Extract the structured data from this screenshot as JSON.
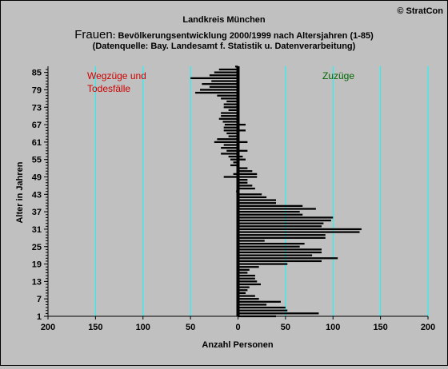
{
  "copyright": "© StratCon",
  "title": {
    "line1": "Landkreis München",
    "prefix": "Frauen",
    "line2": ": Bevölkerungsentwicklung 2000/1999  nach Altersjahren (1-85)",
    "line3": "(Datenquelle: Bay. Landesamt f. Statistik u. Datenverarbeitung)"
  },
  "colors": {
    "background": "#c0c0c0",
    "plot": "#c0c0c0",
    "bars": "#000000",
    "grid": "#00ffff",
    "left_label": "#cc0000",
    "right_label": "#006600"
  },
  "chart_data": {
    "type": "bar",
    "orientation": "horizontal",
    "xlabel": "Anzahl Personen",
    "ylabel": "Alter in Jahren",
    "xlim": [
      -200,
      200
    ],
    "x_ticks": [
      -200,
      -150,
      -100,
      -50,
      0,
      50,
      100,
      150,
      200
    ],
    "x_tick_labels": [
      "200",
      "150",
      "100",
      "50",
      "0",
      "50",
      "100",
      "150",
      "200"
    ],
    "y_ticks": [
      1,
      7,
      13,
      19,
      25,
      31,
      37,
      43,
      49,
      55,
      61,
      67,
      73,
      79,
      85
    ],
    "grid_vertical": true,
    "left_label_lines": [
      "Wegzüge und",
      "Todesfälle"
    ],
    "right_label": "Zuzüge",
    "ages": [
      1,
      2,
      3,
      4,
      5,
      6,
      7,
      8,
      9,
      10,
      11,
      12,
      13,
      14,
      15,
      16,
      17,
      18,
      19,
      20,
      21,
      22,
      23,
      24,
      25,
      26,
      27,
      28,
      29,
      30,
      31,
      32,
      33,
      34,
      35,
      36,
      37,
      38,
      39,
      40,
      41,
      42,
      43,
      44,
      45,
      46,
      47,
      48,
      49,
      50,
      51,
      52,
      53,
      54,
      55,
      56,
      57,
      58,
      59,
      60,
      61,
      62,
      63,
      64,
      65,
      66,
      67,
      68,
      69,
      70,
      71,
      72,
      73,
      74,
      75,
      76,
      77,
      78,
      79,
      80,
      81,
      82,
      83,
      84,
      85,
      86,
      87
    ],
    "values": [
      40,
      85,
      52,
      50,
      30,
      45,
      22,
      18,
      8,
      10,
      12,
      24,
      20,
      18,
      18,
      10,
      12,
      22,
      52,
      88,
      105,
      78,
      88,
      88,
      65,
      70,
      28,
      92,
      92,
      128,
      130,
      88,
      90,
      98,
      100,
      68,
      65,
      82,
      68,
      40,
      40,
      30,
      25,
      0,
      18,
      15,
      10,
      10,
      20,
      20,
      15,
      10,
      0,
      0,
      8,
      5,
      0,
      10,
      0,
      0,
      10,
      0,
      0,
      0,
      8,
      0,
      8,
      0,
      0,
      0,
      0,
      0,
      0,
      0,
      0,
      0,
      0,
      0,
      0,
      0,
      0,
      0,
      0,
      0,
      0,
      0,
      0
    ],
    "values_neg": [
      0,
      0,
      0,
      0,
      0,
      0,
      0,
      0,
      0,
      0,
      0,
      0,
      0,
      0,
      0,
      0,
      0,
      0,
      0,
      0,
      0,
      0,
      0,
      0,
      0,
      0,
      0,
      0,
      0,
      0,
      0,
      0,
      0,
      0,
      0,
      0,
      0,
      0,
      0,
      0,
      0,
      0,
      0,
      -2,
      0,
      0,
      0,
      0,
      -15,
      -5,
      0,
      0,
      -8,
      -5,
      -8,
      -10,
      -18,
      -12,
      -18,
      -15,
      -25,
      -22,
      -10,
      -12,
      -15,
      -15,
      -14,
      -16,
      -20,
      -18,
      -18,
      -10,
      -15,
      -15,
      -12,
      -18,
      -22,
      -45,
      -40,
      -30,
      -38,
      -28,
      -50,
      -30,
      -25,
      -20,
      -3
    ]
  }
}
